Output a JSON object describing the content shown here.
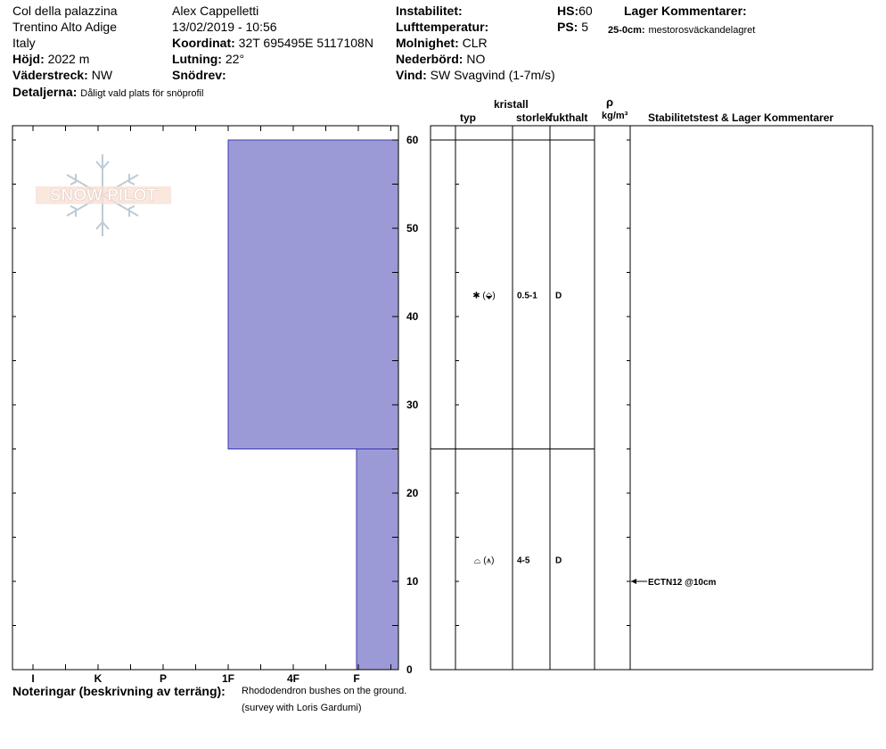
{
  "header": {
    "location": "Col della palazzina",
    "region": "Trentino Alto Adige",
    "country": "Italy",
    "elevation_label": "Höjd:",
    "elevation": "2022 m",
    "aspect_label": "Väderstreck:",
    "aspect": "NW",
    "details_label": "Detaljerna:",
    "details": "Dåligt vald plats för snöprofil",
    "observer": "Alex Cappelletti",
    "datetime": "13/02/2019 - 10:56",
    "coord_label": "Koordinat:",
    "coord": "32T 695495E 5117108N",
    "slope_label": "Lutning:",
    "slope": "22°",
    "drift_label": "Snödrev:",
    "drift": "",
    "instability_label": "Instabilitet:",
    "instability": "",
    "airtemp_label": "Lufttemperatur:",
    "airtemp": "",
    "sky_label": "Molnighet:",
    "sky": "CLR",
    "precip_label": "Nederbörd:",
    "precip": "NO",
    "wind_label": "Vind:",
    "wind": "SW Svagvind (1-7m/s)",
    "hs_label": "HS:",
    "hs": "60",
    "ps_label": "PS:",
    "ps": "5",
    "layer_comments_label": "Lager Kommentarer:",
    "layer_comment_depth": "25-0cm:",
    "layer_comment_text": "mestorosväckandelagret"
  },
  "logo": {
    "text": "SNOW PILOT"
  },
  "columns": {
    "type": "typ",
    "crystal": "kristall",
    "size": "storlek",
    "moisture": "fukthalt",
    "rho": "ρ",
    "density_unit": "kg/m³",
    "stability": "Stabilitetstest & Lager Kommentarer"
  },
  "layers": [
    {
      "top": 60,
      "bottom": 25,
      "hardness": "1F",
      "crystal_symbol": "✱ (⬙)",
      "size": "0.5-1",
      "moisture": "D"
    },
    {
      "top": 25,
      "bottom": 0,
      "hardness": "F",
      "crystal_symbol": "⌓ (⩚)",
      "size": "4-5",
      "moisture": "D"
    }
  ],
  "tests": [
    {
      "depth": 10,
      "label": "ECTN12 @10cm"
    }
  ],
  "chart_data": {
    "type": "bar",
    "title": "",
    "xlabel": "",
    "ylabel": "",
    "hardness_scale": [
      "I",
      "K",
      "P",
      "1F",
      "4F",
      "F"
    ],
    "y_ticks": [
      0,
      10,
      20,
      30,
      40,
      50,
      60
    ],
    "ylim": [
      0,
      60
    ],
    "layers": [
      {
        "from_cm": 25,
        "to_cm": 60,
        "hardness": "1F"
      },
      {
        "from_cm": 0,
        "to_cm": 25,
        "hardness": "F"
      }
    ],
    "colors": {
      "fill": "#9b9ad6",
      "stroke": "#3b39b5"
    }
  },
  "notes": {
    "label": "Noteringar (beskrivning av terräng):",
    "line1": "Rhododendron bushes on the ground.",
    "line2": "(survey with Loris Gardumi)"
  }
}
